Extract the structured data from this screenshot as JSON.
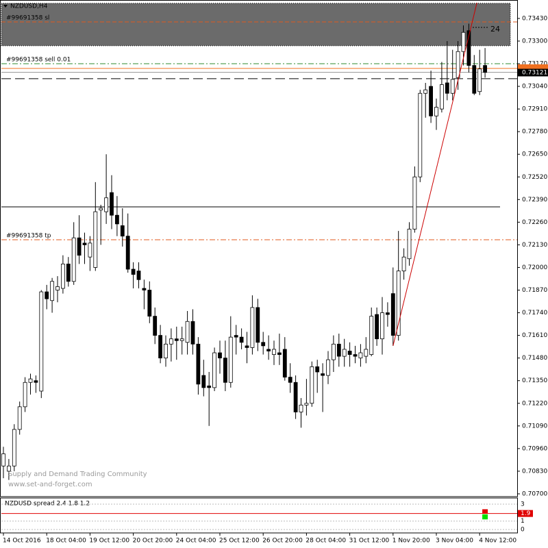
{
  "chart_data": {
    "type": "candlestick",
    "title": "NZDUSD,H4",
    "categories": [
      "14 Oct 2016",
      null,
      null,
      null,
      null,
      null,
      null,
      null,
      "18 Oct 04:00",
      null,
      null,
      null,
      null,
      null,
      null,
      null,
      "19 Oct 12:00",
      null,
      null,
      null,
      null,
      null,
      null,
      null,
      "20 Oct 20:00",
      null,
      null,
      null,
      null,
      null,
      null,
      null,
      "24 Oct 04:00",
      null,
      null,
      null,
      null,
      null,
      null,
      null,
      "25 Oct 12:00",
      null,
      null,
      null,
      null,
      null,
      null,
      null,
      "26 Oct 20:00",
      null,
      null,
      null,
      null,
      null,
      null,
      null,
      "28 Oct 04:00",
      null,
      null,
      null,
      null,
      null,
      null,
      null,
      "31 Oct 12:00",
      null,
      null,
      null,
      null,
      null,
      null,
      null,
      "1 Nov 20:00",
      null,
      null,
      null,
      null,
      null,
      null,
      null,
      "3 Nov 04:00",
      null,
      null,
      null,
      null,
      null,
      null,
      null,
      "4 Nov 12:00",
      null
    ],
    "open": [
      0.7086,
      0.7083,
      0.7086,
      0.7107,
      0.712,
      0.7134,
      0.7135,
      0.7129,
      0.7186,
      0.7181,
      0.7187,
      0.7188,
      0.7202,
      0.7192,
      0.7217,
      0.7214,
      0.7206,
      0.72,
      0.7233,
      0.7232,
      0.7243,
      0.723,
      0.7224,
      0.7218,
      0.7199,
      0.7198,
      0.7188,
      0.7187,
      0.7172,
      0.7161,
      0.7148,
      0.7156,
      0.7159,
      0.7158,
      0.7157,
      0.7169,
      0.7156,
      0.7138,
      0.7132,
      0.7131,
      0.7151,
      0.7148,
      0.7134,
      0.7161,
      0.716,
      0.7155,
      0.7154,
      0.7177,
      0.7157,
      0.7153,
      0.715,
      0.7151,
      0.7153,
      0.7137,
      0.7134,
      0.7117,
      0.7121,
      0.7122,
      0.7143,
      0.7139,
      0.7138,
      0.7147,
      0.7156,
      0.7149,
      0.7152,
      0.715,
      0.7148,
      0.7149,
      0.715,
      0.7173,
      0.7159,
      0.7174,
      0.7185,
      0.7161,
      0.7198,
      0.7205,
      0.7222,
      0.7252,
      0.73,
      0.7304,
      0.7287,
      0.7291,
      0.7306,
      0.73,
      0.7309,
      0.7324,
      0.7336,
      0.7316,
      0.7301,
      0.7316
    ],
    "high": [
      0.7097,
      0.709,
      0.711,
      0.7123,
      0.7137,
      0.7139,
      0.7138,
      0.7187,
      0.719,
      0.7194,
      0.7195,
      0.7207,
      0.7206,
      0.7226,
      0.723,
      0.722,
      0.7218,
      0.7249,
      0.7236,
      0.7265,
      0.7253,
      0.7241,
      0.7234,
      0.7231,
      0.7203,
      0.7203,
      0.7193,
      0.7192,
      0.7177,
      0.7167,
      0.7161,
      0.7165,
      0.7166,
      0.7166,
      0.7175,
      0.7176,
      0.716,
      0.7147,
      0.714,
      0.7154,
      0.7158,
      0.7158,
      0.7172,
      0.7167,
      0.7165,
      0.7163,
      0.7184,
      0.7182,
      0.7163,
      0.7161,
      0.7158,
      0.7162,
      0.716,
      0.7145,
      0.7138,
      0.7125,
      0.7136,
      0.7146,
      0.7147,
      0.7145,
      0.7152,
      0.7161,
      0.7162,
      0.7159,
      0.7157,
      0.7155,
      0.7156,
      0.716,
      0.7177,
      0.7177,
      0.7183,
      0.718,
      0.72,
      0.7221,
      0.7211,
      0.7226,
      0.7258,
      0.7302,
      0.7306,
      0.7313,
      0.7297,
      0.7318,
      0.733,
      0.7325,
      0.733,
      0.7339,
      0.734,
      0.7322,
      0.7325,
      0.7326
    ],
    "low": [
      0.7079,
      0.7078,
      0.7083,
      0.7104,
      0.7117,
      0.7127,
      0.7128,
      0.7125,
      0.7176,
      0.7174,
      0.718,
      0.7185,
      0.7189,
      0.719,
      0.7202,
      0.7202,
      0.7198,
      0.7198,
      0.7213,
      0.7225,
      0.7222,
      0.7218,
      0.7212,
      0.7197,
      0.7188,
      0.7188,
      0.7176,
      0.7168,
      0.7156,
      0.7145,
      0.7143,
      0.7146,
      0.7147,
      0.715,
      0.715,
      0.715,
      0.7127,
      0.7126,
      0.7109,
      0.7129,
      0.7139,
      0.7129,
      0.7131,
      0.715,
      0.7153,
      0.7145,
      0.715,
      0.7152,
      0.715,
      0.7147,
      0.7144,
      0.7144,
      0.7135,
      0.7128,
      0.7113,
      0.7108,
      0.7115,
      0.712,
      0.7128,
      0.7117,
      0.7133,
      0.714,
      0.7143,
      0.7143,
      0.7143,
      0.7145,
      0.7143,
      0.7145,
      0.7149,
      0.7155,
      0.715,
      0.7166,
      0.7155,
      0.7158,
      0.7193,
      0.7201,
      0.722,
      0.7249,
      0.7286,
      0.7283,
      0.7279,
      0.7289,
      0.7296,
      0.7296,
      0.7302,
      0.7316,
      0.7312,
      0.7299,
      0.7299,
      0.7309
    ],
    "close": [
      0.7093,
      0.7086,
      0.7107,
      0.712,
      0.7134,
      0.7136,
      0.7134,
      0.7186,
      0.7182,
      0.7192,
      0.7189,
      0.7202,
      0.7192,
      0.7217,
      0.7207,
      0.7213,
      0.7214,
      0.7232,
      0.7234,
      0.724,
      0.723,
      0.7225,
      0.7218,
      0.7199,
      0.7196,
      0.7193,
      0.7187,
      0.7172,
      0.7161,
      0.7148,
      0.7156,
      0.7159,
      0.7158,
      0.7159,
      0.7169,
      0.7156,
      0.7133,
      0.7131,
      0.7131,
      0.7151,
      0.7148,
      0.7134,
      0.716,
      0.716,
      0.7157,
      0.7154,
      0.7177,
      0.7157,
      0.7155,
      0.7152,
      0.7153,
      0.715,
      0.7137,
      0.7134,
      0.7117,
      0.7121,
      0.7122,
      0.7143,
      0.714,
      0.7138,
      0.7147,
      0.7156,
      0.7149,
      0.7153,
      0.715,
      0.7149,
      0.7151,
      0.7153,
      0.7172,
      0.7159,
      0.7174,
      0.7173,
      0.7161,
      0.7198,
      0.7206,
      0.7222,
      0.7252,
      0.73,
      0.7302,
      0.7287,
      0.7292,
      0.7305,
      0.73,
      0.7308,
      0.7324,
      0.7335,
      0.7316,
      0.73,
      0.7314,
      0.7312
    ],
    "up_color": "#ffffff",
    "down_color": "#000000",
    "ylim": [
      0.70688,
      0.73528
    ],
    "yticks": [
      {
        "value": 0.7343,
        "label": "0.73430"
      },
      {
        "value": 0.733,
        "label": "0.73300"
      },
      {
        "value": 0.7317,
        "label": "0.73170"
      },
      {
        "value": 0.7304,
        "label": "0.73040"
      },
      {
        "value": 0.7291,
        "label": "0.72910"
      },
      {
        "value": 0.7278,
        "label": "0.72780"
      },
      {
        "value": 0.7265,
        "label": "0.72650"
      },
      {
        "value": 0.7252,
        "label": "0.72520"
      },
      {
        "value": 0.7239,
        "label": "0.72390"
      },
      {
        "value": 0.7226,
        "label": "0.72260"
      },
      {
        "value": 0.7213,
        "label": "0.72130"
      },
      {
        "value": 0.72,
        "label": "0.72000"
      },
      {
        "value": 0.7187,
        "label": "0.71870"
      },
      {
        "value": 0.7174,
        "label": "0.71740"
      },
      {
        "value": 0.7161,
        "label": "0.71610"
      },
      {
        "value": 0.7148,
        "label": "0.71480"
      },
      {
        "value": 0.7135,
        "label": "0.71350"
      },
      {
        "value": 0.7122,
        "label": "0.71220"
      },
      {
        "value": 0.7109,
        "label": "0.71090"
      },
      {
        "value": 0.7096,
        "label": "0.70960"
      },
      {
        "value": 0.7083,
        "label": "0.70830"
      },
      {
        "value": 0.707,
        "label": "0.70700"
      }
    ],
    "grid": false,
    "zone": {
      "top": 0.73517,
      "bottom": 0.73273,
      "color": "#6b6b6b"
    },
    "levels": [
      {
        "price": 0.7341,
        "color": "#e05a1c",
        "style": "dash",
        "label": "#99691358 sl"
      },
      {
        "price": 0.7317,
        "color": "#2e8b2e",
        "style": "dashdot",
        "label": "#99691358 sell 0.01"
      },
      {
        "price": 0.73143,
        "color": "#f07020",
        "style": "solid"
      },
      {
        "price": 0.73084,
        "color": "#000000",
        "style": "longdash"
      },
      {
        "price": 0.72348,
        "color": "#000000",
        "style": "solid"
      },
      {
        "price": 0.72159,
        "color": "#e05a1c",
        "style": "dashdot",
        "label": "#99691358 tp"
      }
    ],
    "current_price": {
      "value": 0.73121,
      "label": "0.73121"
    },
    "trendline": {
      "x": [
        72,
        87.5
      ],
      "y": [
        0.7155,
        0.7352
      ],
      "color": "#cc0000"
    },
    "marker_text": "24",
    "watermark": [
      "Supply and Demand Trading Community",
      "www.set-and-forget.com"
    ],
    "spread": {
      "title": "NZDUSD spread 2.4 1.8 1.2",
      "ylim": [
        -0.4,
        3.73
      ],
      "yticks": [
        3,
        1,
        0
      ],
      "level": 1.9,
      "bars": [
        {
          "top": 2.4,
          "bottom": 1.9,
          "color": "#e00000"
        },
        {
          "top": 1.8,
          "bottom": 1.2,
          "color": "#00e000"
        }
      ]
    }
  }
}
